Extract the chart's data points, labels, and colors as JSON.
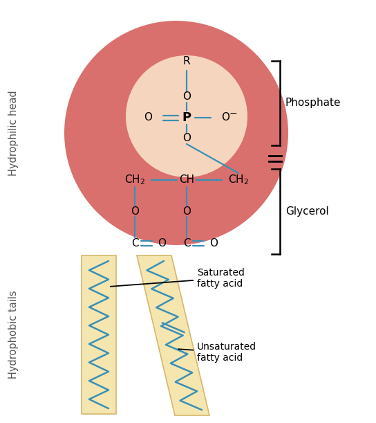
{
  "bg_color": "#ffffff",
  "head_circle_color": "#d9706e",
  "head_circle_inner_color": "#f5d5be",
  "tail_rect_color": "#f5e6b0",
  "tail_border_color": "#d4b86a",
  "tail_line_color": "#3a8fb5",
  "bond_color": "#3a8fb5",
  "text_color": "#000000",
  "label_color": "#555555",
  "phosphate_label": "Phosphate",
  "glycerol_label": "Glycerol",
  "saturated_label": "Saturated\nfatty acid",
  "unsaturated_label": "Unsaturated\nfatty acid",
  "hydrophilic_label": "Hydrophilic head",
  "hydrophobic_label": "Hydrophobic tails",
  "fig_w": 5.44,
  "fig_h": 6.11,
  "dpi": 100
}
